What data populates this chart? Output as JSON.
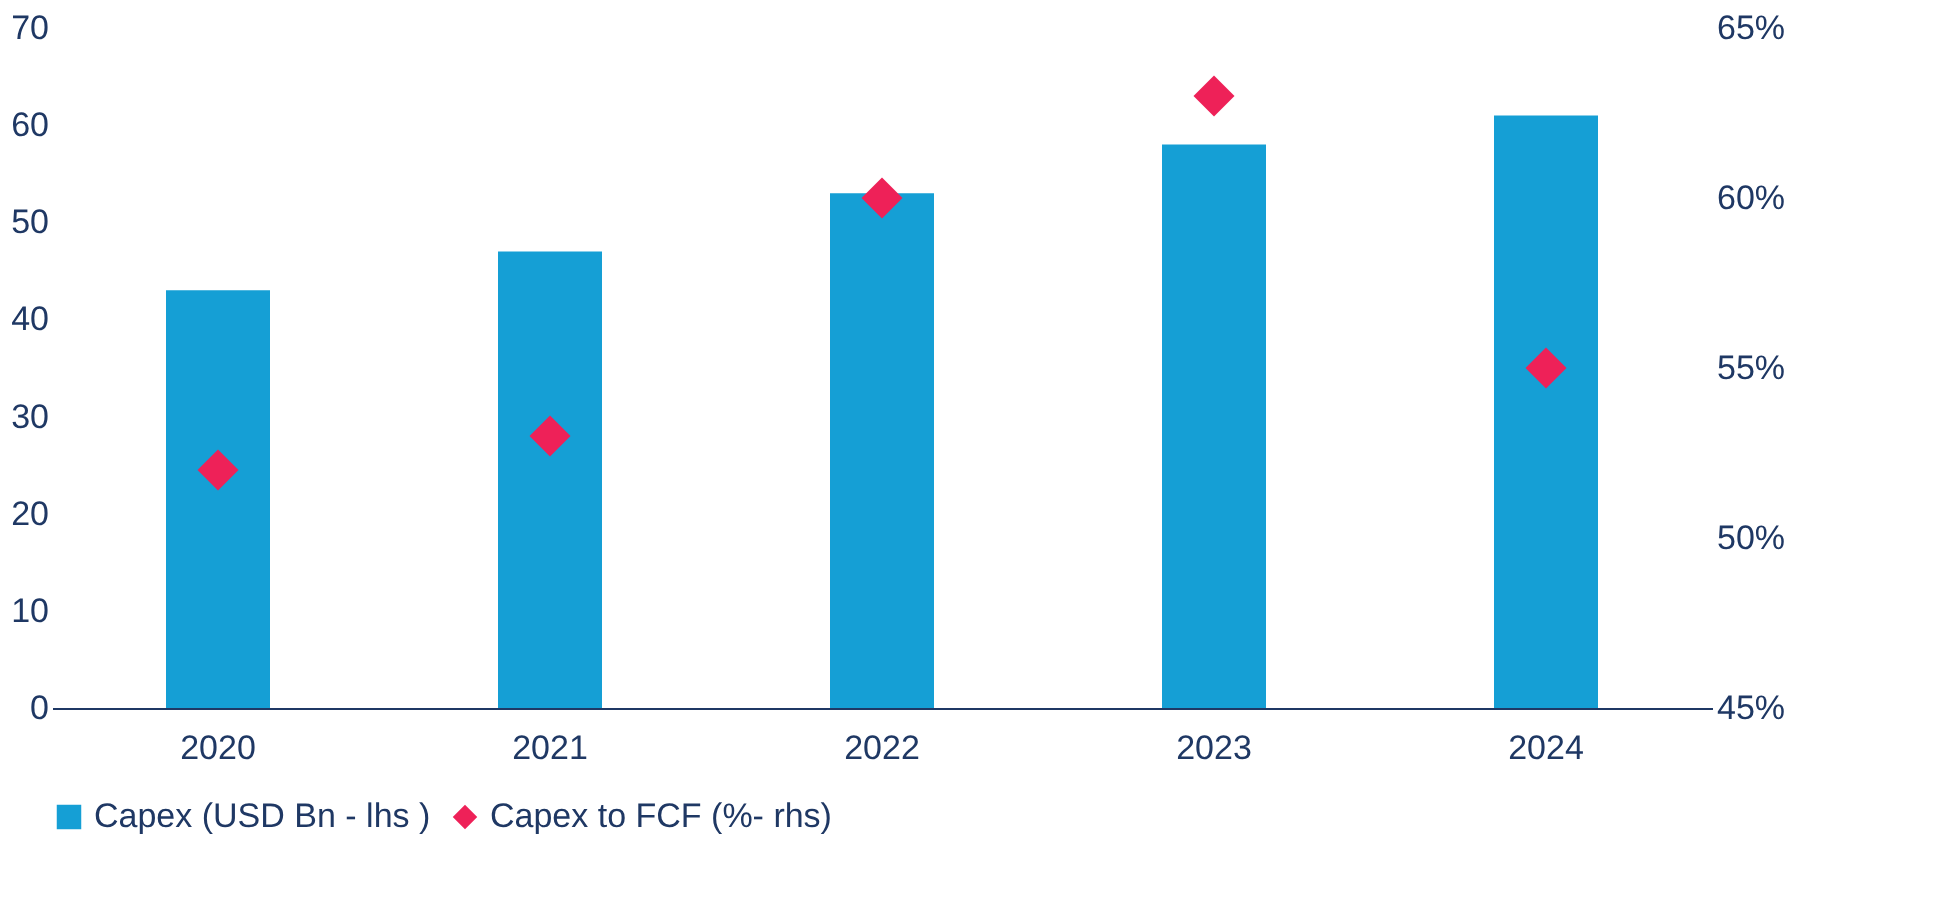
{
  "chart_data": {
    "type": "bar",
    "categories": [
      "2020",
      "2021",
      "2022",
      "2023",
      "2024"
    ],
    "series": [
      {
        "name": "Capex (USD Bn - lhs )",
        "color": "#159fd5",
        "values": [
          43,
          47,
          53,
          58,
          61
        ]
      },
      {
        "name": "Capex to FCF (%- rhs)",
        "type": "scatter",
        "axis": "y2",
        "marker": "diamond",
        "color": "#ee2158",
        "values": [
          52,
          53,
          60,
          63,
          55
        ]
      }
    ],
    "ylim": [
      0,
      70
    ],
    "yticks": [
      0,
      10,
      20,
      30,
      40,
      50,
      60,
      70
    ],
    "y2lim": [
      45,
      65
    ],
    "y2ticks": [
      {
        "value": 45,
        "label": "45%"
      },
      {
        "value": 50,
        "label": "50%"
      },
      {
        "value": 55,
        "label": "55%"
      },
      {
        "value": 60,
        "label": "60%"
      },
      {
        "value": 65,
        "label": "65%"
      }
    ],
    "grid": false,
    "legend": "bottom"
  }
}
